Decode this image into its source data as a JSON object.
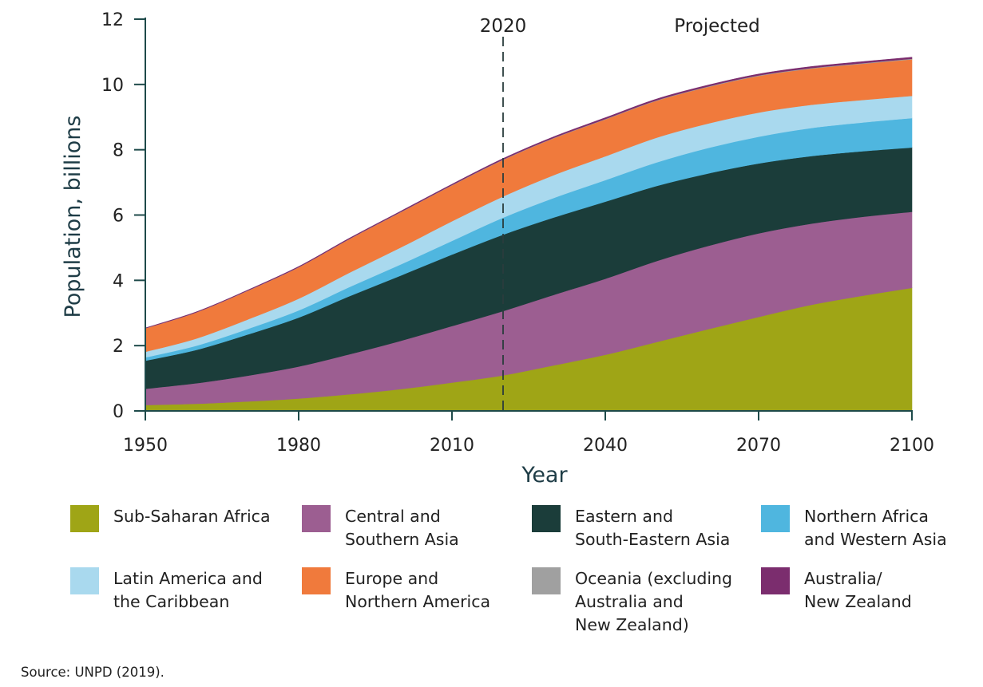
{
  "chart_data": {
    "type": "area",
    "stacked": true,
    "xlabel": "Year",
    "ylabel": "Population, billions",
    "xlim": [
      1950,
      2100
    ],
    "ylim": [
      0,
      12
    ],
    "xticks": [
      "1950",
      "1980",
      "2010",
      "2040",
      "2070",
      "2100"
    ],
    "yticks": [
      "0",
      "2",
      "4",
      "6",
      "8",
      "10",
      "12"
    ],
    "annotations": [
      {
        "text": "2020",
        "x": 2020,
        "style": "dashed-vertical-line"
      },
      {
        "text": "Projected"
      }
    ],
    "x": [
      1950,
      1960,
      1970,
      1980,
      1990,
      2000,
      2010,
      2020,
      2030,
      2040,
      2050,
      2060,
      2070,
      2080,
      2090,
      2100
    ],
    "series": [
      {
        "name": "Sub-Saharan Africa",
        "color": "#9fa516",
        "values": [
          0.18,
          0.22,
          0.29,
          0.38,
          0.51,
          0.67,
          0.87,
          1.09,
          1.4,
          1.72,
          2.11,
          2.5,
          2.88,
          3.24,
          3.52,
          3.77
        ]
      },
      {
        "name": "Central and Southern Asia",
        "color": "#9c5e91",
        "values": [
          0.5,
          0.63,
          0.79,
          0.98,
          1.23,
          1.48,
          1.73,
          1.97,
          2.16,
          2.33,
          2.48,
          2.55,
          2.56,
          2.49,
          2.42,
          2.33
        ]
      },
      {
        "name": "Eastern and South-Eastern Asia",
        "color": "#1b3d3a",
        "values": [
          0.86,
          1.02,
          1.26,
          1.5,
          1.78,
          2.0,
          2.19,
          2.34,
          2.37,
          2.36,
          2.3,
          2.22,
          2.14,
          2.07,
          2.01,
          1.97
        ]
      },
      {
        "name": "Northern Africa and Western Asia",
        "color": "#4fb6df",
        "values": [
          0.1,
          0.13,
          0.17,
          0.22,
          0.28,
          0.34,
          0.42,
          0.52,
          0.6,
          0.66,
          0.72,
          0.78,
          0.82,
          0.86,
          0.88,
          0.9
        ]
      },
      {
        "name": "Latin America and the Caribbean",
        "color": "#a9d9ee",
        "values": [
          0.17,
          0.22,
          0.29,
          0.36,
          0.44,
          0.52,
          0.6,
          0.65,
          0.7,
          0.73,
          0.76,
          0.75,
          0.74,
          0.71,
          0.69,
          0.68
        ]
      },
      {
        "name": "Europe and Northern America",
        "color": "#f07a3c",
        "values": [
          0.72,
          0.8,
          0.88,
          0.96,
          1.03,
          1.08,
          1.1,
          1.12,
          1.13,
          1.13,
          1.13,
          1.12,
          1.12,
          1.11,
          1.11,
          1.12
        ]
      },
      {
        "name": "Oceania (excluding Australia and New Zealand)",
        "color": "#a0a0a0",
        "values": [
          0.003,
          0.003,
          0.004,
          0.005,
          0.006,
          0.007,
          0.009,
          0.011,
          0.012,
          0.014,
          0.015,
          0.016,
          0.017,
          0.018,
          0.019,
          0.019
        ]
      },
      {
        "name": "Australia/ New Zealand",
        "color": "#7b2d6e",
        "values": [
          0.01,
          0.012,
          0.015,
          0.017,
          0.02,
          0.023,
          0.026,
          0.03,
          0.033,
          0.036,
          0.038,
          0.04,
          0.042,
          0.044,
          0.045,
          0.046
        ]
      }
    ]
  },
  "legend": [
    {
      "label": "Sub-Saharan Africa",
      "color": "#9fa516"
    },
    {
      "label": "Central and\nSouthern Asia",
      "color": "#9c5e91"
    },
    {
      "label": "Eastern and\nSouth-Eastern Asia",
      "color": "#1b3d3a"
    },
    {
      "label": "Northern Africa\nand Western Asia",
      "color": "#4fb6df"
    },
    {
      "label": "Latin America and\nthe Caribbean",
      "color": "#a9d9ee"
    },
    {
      "label": "Europe and\nNorthern America",
      "color": "#f07a3c"
    },
    {
      "label": "Oceania (excluding\nAustralia and\nNew Zealand)",
      "color": "#a0a0a0"
    },
    {
      "label": "Australia/\nNew Zealand",
      "color": "#7b2d6e"
    }
  ],
  "source": "Source: UNPD (2019)."
}
